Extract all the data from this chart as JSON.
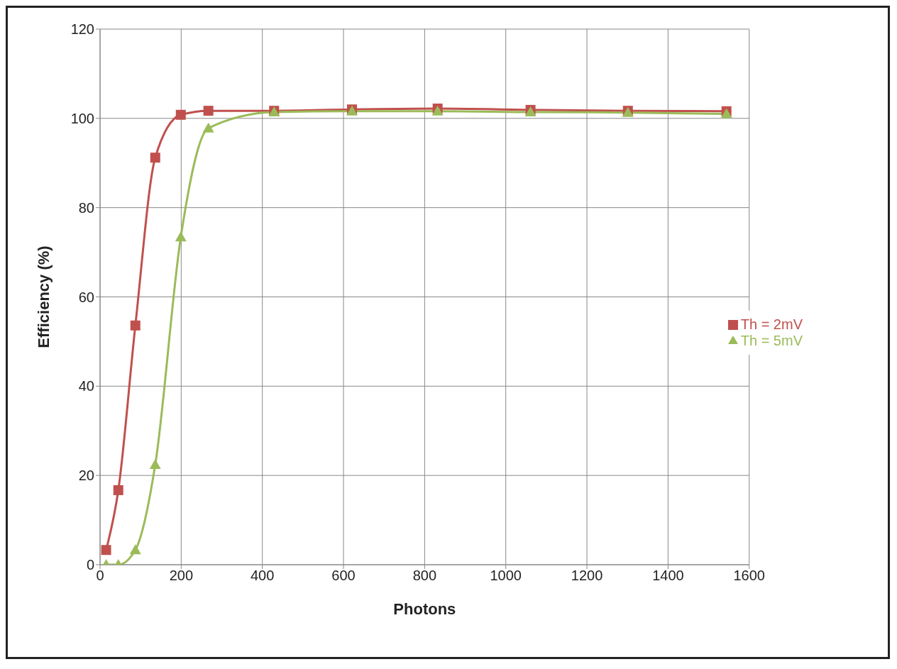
{
  "chart_data": {
    "type": "line",
    "xlabel": "Photons",
    "ylabel": "Efficiency (%)",
    "xlim": [
      0,
      1600
    ],
    "xticks": [
      0,
      200,
      400,
      600,
      800,
      1000,
      1200,
      1400,
      1600
    ],
    "ylim": [
      0,
      120
    ],
    "yticks": [
      0,
      20,
      40,
      60,
      80,
      100,
      120
    ],
    "grid": true,
    "legend": "right",
    "line_style": "solid",
    "series": [
      {
        "name": "Th = 2mV",
        "color": "#c0504d",
        "marker": "square",
        "x": [
          15,
          45,
          87,
          136,
          199,
          267,
          429,
          621,
          832,
          1061,
          1301,
          1544
        ],
        "values": [
          3.3,
          16.7,
          53.6,
          91.2,
          100.8,
          101.7,
          101.7,
          102,
          102.2,
          101.9,
          101.7,
          101.6
        ]
      },
      {
        "name": "Th = 5mV",
        "color": "#9bbb59",
        "marker": "triangle",
        "x": [
          15,
          45,
          87,
          136,
          199,
          267,
          429,
          621,
          832,
          1061,
          1301,
          1544
        ],
        "values": [
          0,
          0,
          3.3,
          22.4,
          73.4,
          97.8,
          101.4,
          101.6,
          101.6,
          101.4,
          101.3,
          101
        ]
      }
    ]
  }
}
